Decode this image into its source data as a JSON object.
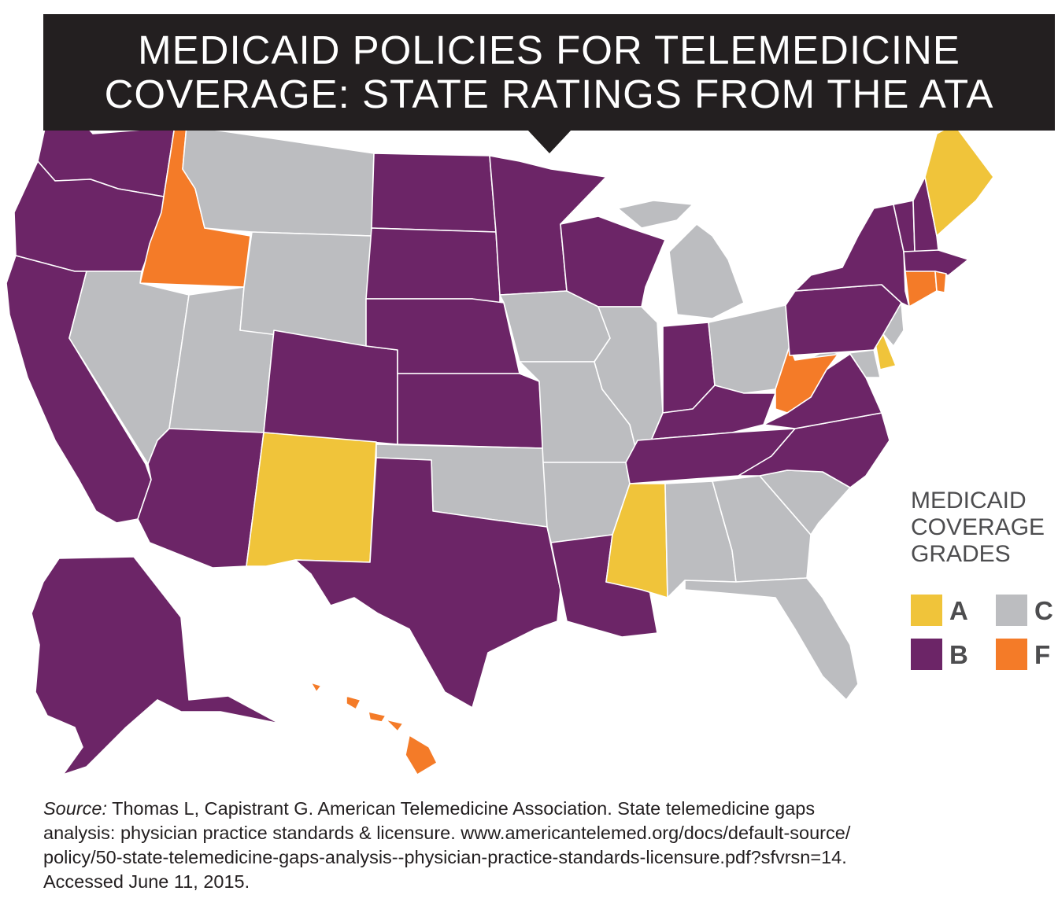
{
  "title": {
    "line1": "MEDICAID POLICIES FOR TELEMEDICINE",
    "line2": "COVERAGE: STATE RATINGS FROM THE ATA"
  },
  "legend": {
    "title_lines": [
      "MEDICAID",
      "COVERAGE",
      "GRADES"
    ],
    "grades": [
      {
        "grade": "A",
        "color": "#f0c43a"
      },
      {
        "grade": "C",
        "color": "#bcbdc0"
      },
      {
        "grade": "B",
        "color": "#6c2567"
      },
      {
        "grade": "F",
        "color": "#f47b28"
      }
    ]
  },
  "source": {
    "label": "Source:",
    "line1": " Thomas L, Capistrant G. American Telemedicine Association. State telemedicine gaps",
    "line2": "analysis: physician practice standards & licensure. www.americantelemed.org/docs/default-source/",
    "line3": "policy/50-state-telemedicine-gaps-analysis--physician-practice-standards-licensure.pdf?sfvrsn=14.",
    "line4": "Accessed June 11, 2015."
  },
  "state_grades": {
    "WA": "B",
    "OR": "B",
    "CA": "B",
    "ID": "F",
    "NV": "C",
    "UT": "C",
    "AZ": "B",
    "MT": "C",
    "WY": "C",
    "CO": "B",
    "NM": "A",
    "ND": "B",
    "SD": "B",
    "NE": "B",
    "KS": "B",
    "OK": "C",
    "TX": "B",
    "MN": "B",
    "IA": "C",
    "MO": "C",
    "AR": "C",
    "LA": "B",
    "WI": "B",
    "IL": "C",
    "MI": "C",
    "IN": "B",
    "OH": "C",
    "KY": "B",
    "TN": "B",
    "MS": "A",
    "AL": "C",
    "GA": "C",
    "FL": "C",
    "SC": "C",
    "NC": "B",
    "VA": "B",
    "WV": "F",
    "MD": "C",
    "DE": "A",
    "NJ": "C",
    "PA": "B",
    "NY": "B",
    "VT": "B",
    "NH": "B",
    "ME": "A",
    "MA": "B",
    "RI": "F",
    "CT": "F",
    "AK": "B",
    "HI": "F"
  }
}
